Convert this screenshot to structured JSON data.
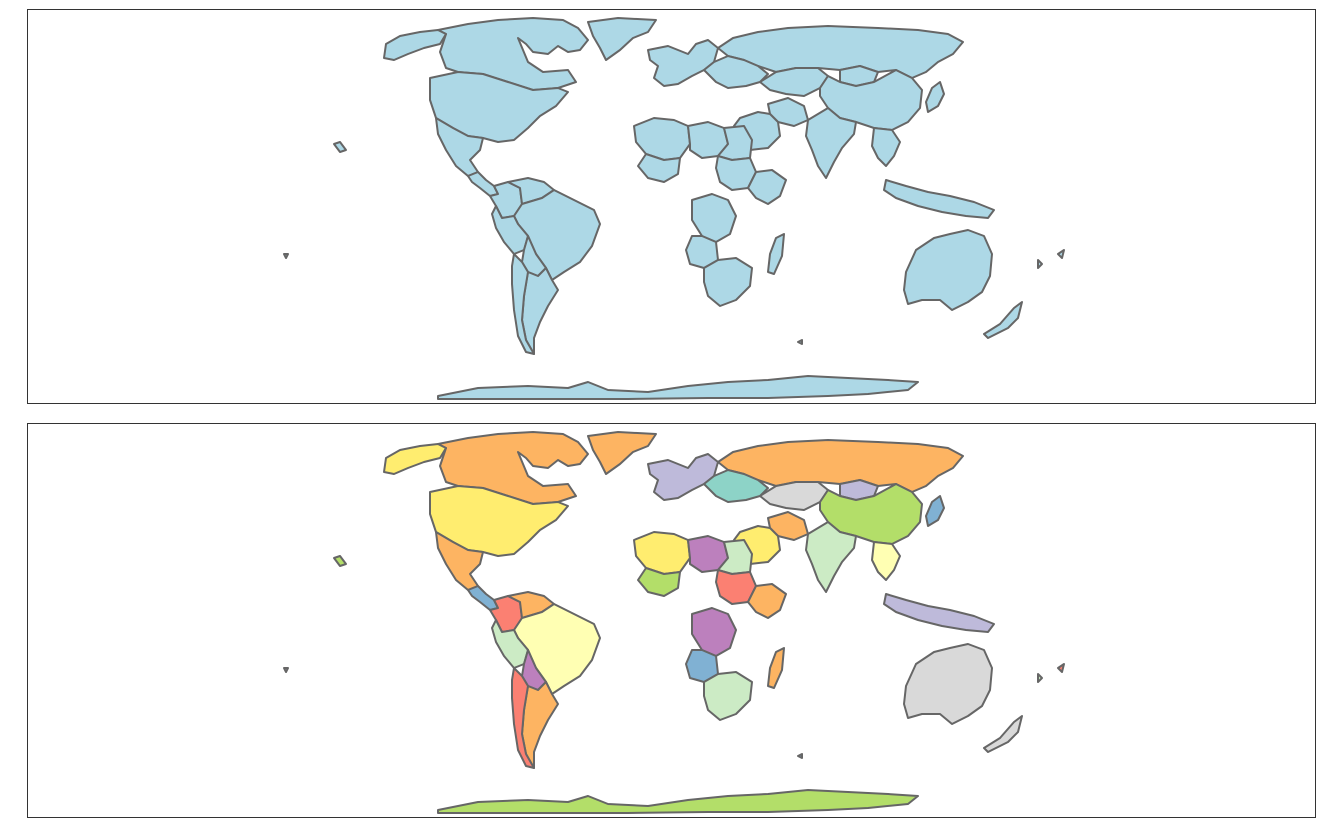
{
  "figure": {
    "description_free": true
  },
  "maps": [
    {
      "id": "uniform",
      "fill_mode": "single",
      "fill_color": "#ADD8E6",
      "border_color": "#666666"
    },
    {
      "id": "categorical",
      "fill_mode": "palette",
      "palette": [
        "#FDB462",
        "#FFED6F",
        "#B3DE69",
        "#BEBADA",
        "#FB8072",
        "#80B1D3",
        "#CCEBC5",
        "#BC80BD",
        "#FFFFB3",
        "#FCCDE5",
        "#8DD3C7",
        "#D9D9D9"
      ],
      "border_color": "#666666"
    }
  ],
  "regions": [
    {
      "name": "canada",
      "color_index": 0
    },
    {
      "name": "usa",
      "color_index": 1
    },
    {
      "name": "alaska",
      "color_index": 1
    },
    {
      "name": "greenland",
      "color_index": 0
    },
    {
      "name": "mexico",
      "color_index": 0
    },
    {
      "name": "central-america",
      "color_index": 5
    },
    {
      "name": "colombia",
      "color_index": 4
    },
    {
      "name": "venezuela",
      "color_index": 0
    },
    {
      "name": "brazil",
      "color_index": 8
    },
    {
      "name": "peru",
      "color_index": 6
    },
    {
      "name": "bolivia",
      "color_index": 7
    },
    {
      "name": "argentina",
      "color_index": 0
    },
    {
      "name": "chile",
      "color_index": 4
    },
    {
      "name": "russia",
      "color_index": 0
    },
    {
      "name": "kazakhstan",
      "color_index": 11
    },
    {
      "name": "mongolia",
      "color_index": 3
    },
    {
      "name": "china",
      "color_index": 2
    },
    {
      "name": "india",
      "color_index": 6
    },
    {
      "name": "iran",
      "color_index": 0
    },
    {
      "name": "saudi-arabia",
      "color_index": 1
    },
    {
      "name": "europe-west",
      "color_index": 3
    },
    {
      "name": "europe-east",
      "color_index": 10
    },
    {
      "name": "algeria",
      "color_index": 1
    },
    {
      "name": "libya",
      "color_index": 7
    },
    {
      "name": "egypt",
      "color_index": 6
    },
    {
      "name": "mali",
      "color_index": 2
    },
    {
      "name": "sudan",
      "color_index": 4
    },
    {
      "name": "ethiopia",
      "color_index": 0
    },
    {
      "name": "dr-congo",
      "color_index": 7
    },
    {
      "name": "angola",
      "color_index": 5
    },
    {
      "name": "south-africa",
      "color_index": 6
    },
    {
      "name": "madagascar",
      "color_index": 0
    },
    {
      "name": "se-asia",
      "color_index": 8
    },
    {
      "name": "indonesia",
      "color_index": 3
    },
    {
      "name": "japan",
      "color_index": 5
    },
    {
      "name": "australia",
      "color_index": 11
    },
    {
      "name": "new-zealand",
      "color_index": 11
    },
    {
      "name": "antarctica",
      "color_index": 2
    }
  ]
}
